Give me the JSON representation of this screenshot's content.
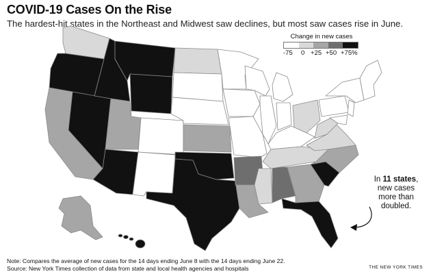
{
  "header": {
    "title": "COVID-19 Cases On the Rise",
    "subtitle": "The hardest-hit states in the Northeast and Midwest saw declines, but most saw cases rise in June."
  },
  "legend": {
    "title": "Change in new cases",
    "labels": [
      "-75",
      "0",
      "+25",
      "+50",
      "+75%"
    ],
    "colors": [
      "#ffffff",
      "#d9d9d9",
      "#a6a6a6",
      "#6e6e6e",
      "#111111"
    ]
  },
  "callout": {
    "prefix": "In ",
    "count": "11 states",
    "suffix": ",",
    "line2": "new cases",
    "line3": "more than",
    "line4": "doubled."
  },
  "footer": {
    "note": "Note:  Compares the average of new cases for the 14 days ending June 8 with the 14 days ending June 22.",
    "source": "Source: New York Times collection of data from state and local health agencies and hospitals",
    "credit": "THE NEW YORK TIMES"
  },
  "palette": {
    "white": "#ffffff",
    "light": "#d9d9d9",
    "mid": "#a6a6a6",
    "dark": "#6e6e6e",
    "black": "#111111",
    "stroke": "#8a8a8a"
  }
}
